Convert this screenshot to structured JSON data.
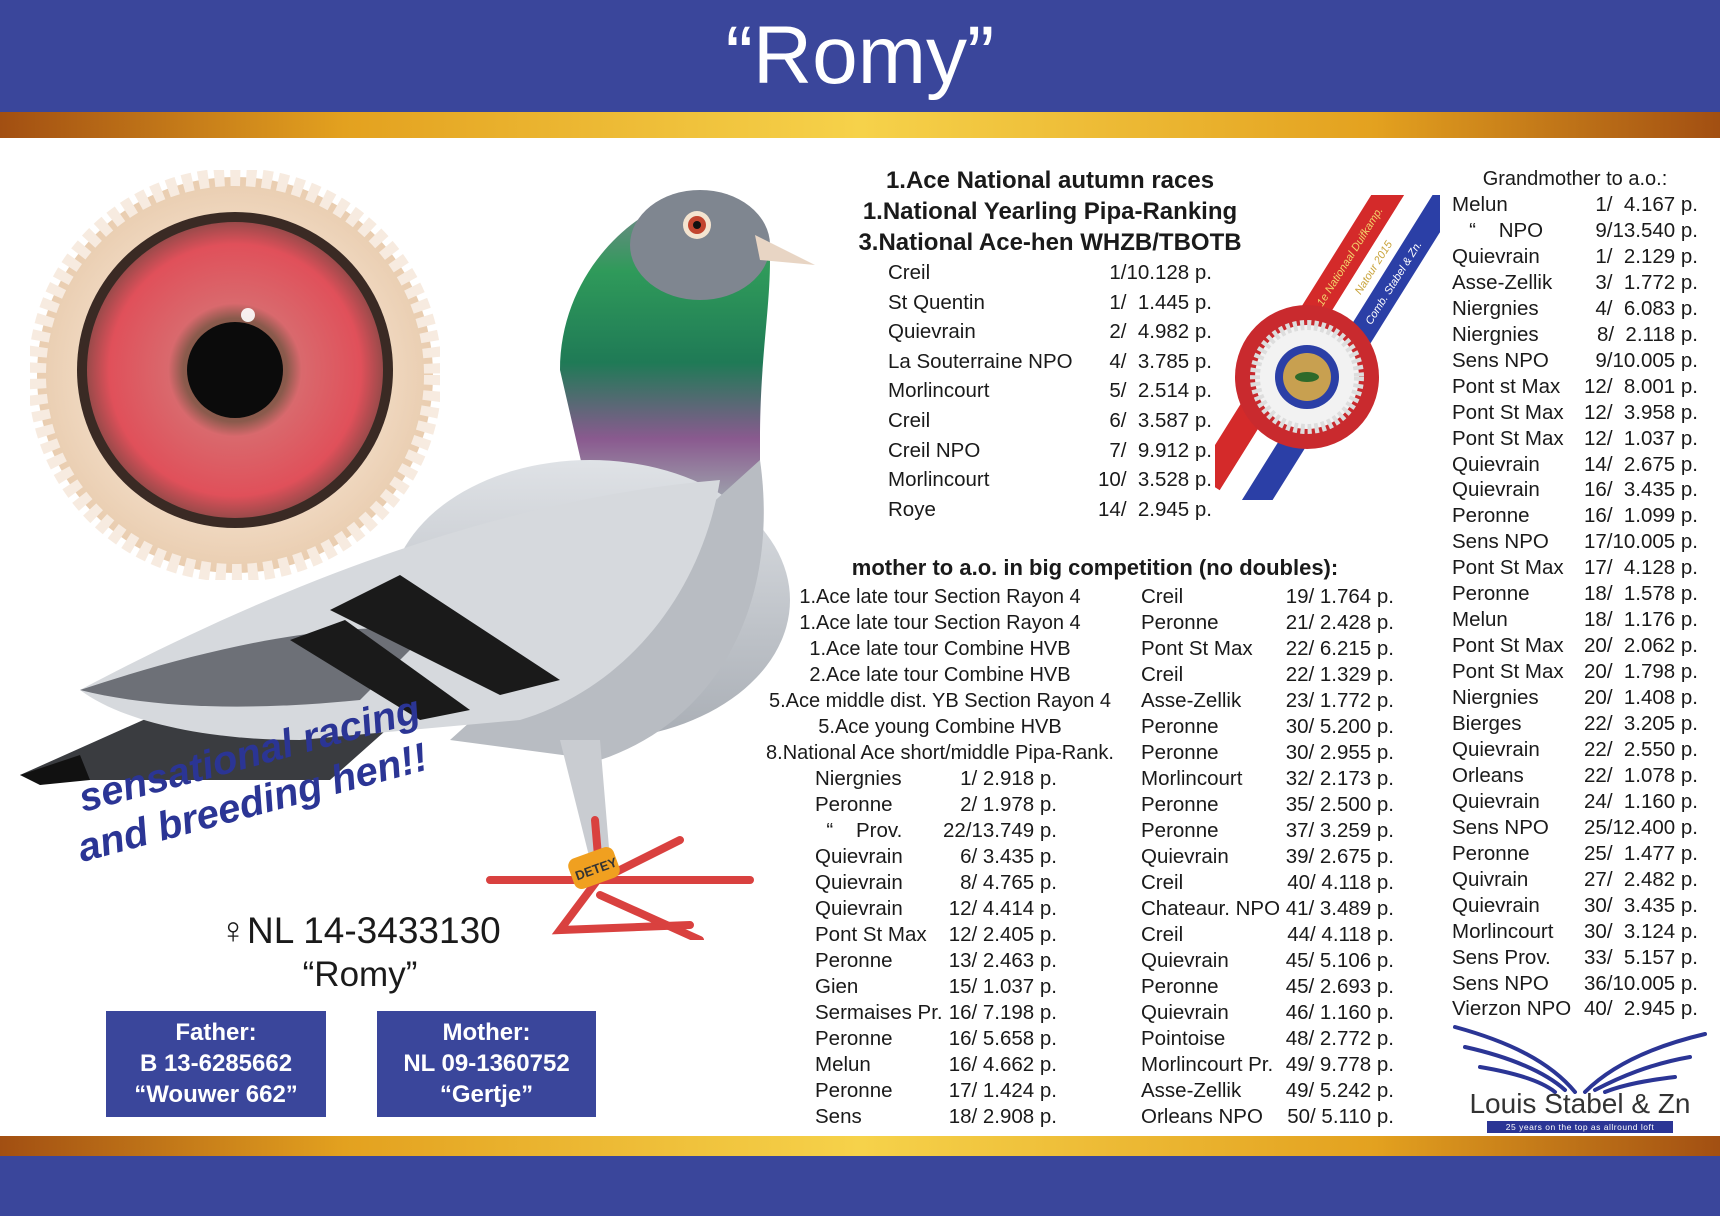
{
  "header": {
    "title": "“Romy”"
  },
  "colors": {
    "brand_blue": "#3a469b",
    "gold": "#e3a11f",
    "slogan_blue": "#2b3595"
  },
  "top": {
    "lines": [
      "1.Ace National autumn races",
      "1.National Yearling Pipa-Ranking",
      "3.National Ace-hen WHZB/TBOTB"
    ],
    "results": [
      {
        "place": "Creil",
        "result": "1/10.128 p."
      },
      {
        "place": "St Quentin",
        "result": "1/  1.445 p."
      },
      {
        "place": "Quievrain",
        "result": "2/  4.982 p."
      },
      {
        "place": "La Souterraine NPO",
        "result": "4/  3.785 p."
      },
      {
        "place": "Morlincourt",
        "result": "5/  2.514 p."
      },
      {
        "place": "Creil",
        "result": "6/  3.587 p."
      },
      {
        "place": "Creil NPO",
        "result": "7/  9.912 p."
      },
      {
        "place": "Morlincourt",
        "result": "10/  3.528 p."
      },
      {
        "place": "Roye",
        "result": "14/  2.945 p."
      }
    ]
  },
  "rosette": {
    "ribbon_text": [
      "1e Nationaal Duifkamp.",
      "Natour 2015",
      "Comb. Stabel & Zn."
    ]
  },
  "mother": {
    "heading": "mother to a.o. in big competition (no doubles):",
    "titles": [
      "1.Ace late tour Section Rayon 4",
      "1.Ace late tour Section Rayon 4",
      "1.Ace late tour Combine HVB",
      "2.Ace late tour Combine HVB",
      "5.Ace middle dist. YB Section Rayon 4",
      "5.Ace young Combine HVB",
      "8.National Ace short/middle Pipa-Rank."
    ],
    "left": [
      {
        "place": "Niergnies",
        "result": "1/ 2.918 p."
      },
      {
        "place": "Peronne",
        "result": "2/ 1.978 p."
      },
      {
        "place": "  “    Prov.",
        "result": "22/13.749 p."
      },
      {
        "place": "Quievrain",
        "result": "6/ 3.435 p."
      },
      {
        "place": "Quievrain",
        "result": "8/ 4.765 p."
      },
      {
        "place": "Quievrain",
        "result": "12/ 4.414 p."
      },
      {
        "place": "Pont St Max",
        "result": "12/ 2.405 p."
      },
      {
        "place": "Peronne",
        "result": "13/ 2.463 p."
      },
      {
        "place": "Gien",
        "result": "15/ 1.037 p."
      },
      {
        "place": "Sermaises Pr.",
        "result": "16/ 7.198 p."
      },
      {
        "place": "Peronne",
        "result": "16/ 5.658 p."
      },
      {
        "place": "Melun",
        "result": "16/ 4.662 p."
      },
      {
        "place": "Peronne",
        "result": "17/ 1.424 p."
      },
      {
        "place": "Sens",
        "result": "18/ 2.908 p."
      }
    ],
    "right": [
      {
        "place": "Creil",
        "result": "19/ 1.764 p."
      },
      {
        "place": "Peronne",
        "result": "21/ 2.428 p."
      },
      {
        "place": "Pont St Max",
        "result": "22/ 6.215 p."
      },
      {
        "place": "Creil",
        "result": "22/ 1.329 p."
      },
      {
        "place": "Asse-Zellik",
        "result": "23/ 1.772 p."
      },
      {
        "place": "Peronne",
        "result": "30/ 5.200 p."
      },
      {
        "place": "Peronne",
        "result": "30/ 2.955 p."
      },
      {
        "place": "Morlincourt",
        "result": "32/ 2.173 p."
      },
      {
        "place": "Peronne",
        "result": "35/ 2.500 p."
      },
      {
        "place": "Peronne",
        "result": "37/ 3.259 p."
      },
      {
        "place": "Quievrain",
        "result": "39/ 2.675 p."
      },
      {
        "place": "Creil",
        "result": "40/ 4.118 p."
      },
      {
        "place": "Chateaur. NPO",
        "result": "41/ 3.489 p."
      },
      {
        "place": "Creil",
        "result": "44/ 4.118 p."
      },
      {
        "place": "Quievrain",
        "result": "45/ 5.106 p."
      },
      {
        "place": "Peronne",
        "result": "45/ 2.693 p."
      },
      {
        "place": "Quievrain",
        "result": "46/ 1.160 p."
      },
      {
        "place": "Pointoise",
        "result": "48/ 2.772 p."
      },
      {
        "place": "Morlincourt Pr.",
        "result": "49/ 9.778 p."
      },
      {
        "place": "Asse-Zellik",
        "result": "49/ 5.242 p."
      },
      {
        "place": "Orleans NPO",
        "result": "50/ 5.110 p."
      }
    ]
  },
  "grandmother": {
    "heading": "Grandmother to a.o.:",
    "rows": [
      {
        "place": "Melun",
        "result": "1/  4.167 p."
      },
      {
        "place": "   “    NPO",
        "result": "9/13.540 p."
      },
      {
        "place": "Quievrain",
        "result": "1/  2.129 p."
      },
      {
        "place": "Asse-Zellik",
        "result": "3/  1.772 p."
      },
      {
        "place": "Niergnies",
        "result": "4/  6.083 p."
      },
      {
        "place": "Niergnies",
        "result": "8/  2.118 p."
      },
      {
        "place": "Sens NPO",
        "result": "9/10.005 p."
      },
      {
        "place": "Pont st Max",
        "result": "12/  8.001 p."
      },
      {
        "place": "Pont St Max",
        "result": "12/  3.958 p."
      },
      {
        "place": "Pont St Max",
        "result": "12/  1.037 p."
      },
      {
        "place": "Quievrain",
        "result": "14/  2.675 p."
      },
      {
        "place": "Quievrain",
        "result": "16/  3.435 p."
      },
      {
        "place": "Peronne",
        "result": "16/  1.099 p."
      },
      {
        "place": "Sens NPO",
        "result": "17/10.005 p."
      },
      {
        "place": "Pont St Max",
        "result": "17/  4.128 p."
      },
      {
        "place": "Peronne",
        "result": "18/  1.578 p."
      },
      {
        "place": "Melun",
        "result": "18/  1.176 p."
      },
      {
        "place": "Pont St Max",
        "result": "20/  2.062 p."
      },
      {
        "place": "Pont St Max",
        "result": "20/  1.798 p."
      },
      {
        "place": "Niergnies",
        "result": "20/  1.408 p."
      },
      {
        "place": "Bierges",
        "result": "22/  3.205 p."
      },
      {
        "place": "Quievrain",
        "result": "22/  2.550 p."
      },
      {
        "place": "Orleans",
        "result": "22/  1.078 p."
      },
      {
        "place": "Quievrain",
        "result": "24/  1.160 p."
      },
      {
        "place": "Sens NPO",
        "result": "25/12.400 p."
      },
      {
        "place": "Peronne",
        "result": "25/  1.477 p."
      },
      {
        "place": "Quivrain",
        "result": "27/  2.482 p."
      },
      {
        "place": "Quievrain",
        "result": "30/  3.435 p."
      },
      {
        "place": "Morlincourt",
        "result": "30/  3.124 p."
      },
      {
        "place": "Sens Prov.",
        "result": "33/  5.157 p."
      },
      {
        "place": "Sens NPO",
        "result": "36/10.005 p."
      },
      {
        "place": "Vierzon NPO",
        "result": "40/  2.945 p."
      }
    ]
  },
  "bird": {
    "slogan": [
      "sensational  racing",
      "and breeding hen!!"
    ],
    "ring": "♀NL 14-3433130",
    "name": "“Romy”",
    "leg_band": "DETEY"
  },
  "father": {
    "label": "Father:",
    "ring": "B 13-6285662",
    "name": "“Wouwer 662”"
  },
  "mother_box": {
    "label": "Mother:",
    "ring": "NL 09-1360752",
    "name": "“Gertje”"
  },
  "logo": {
    "name": "Louis Stabel & Zn",
    "tagline": "25 years on the top as allround loft"
  }
}
